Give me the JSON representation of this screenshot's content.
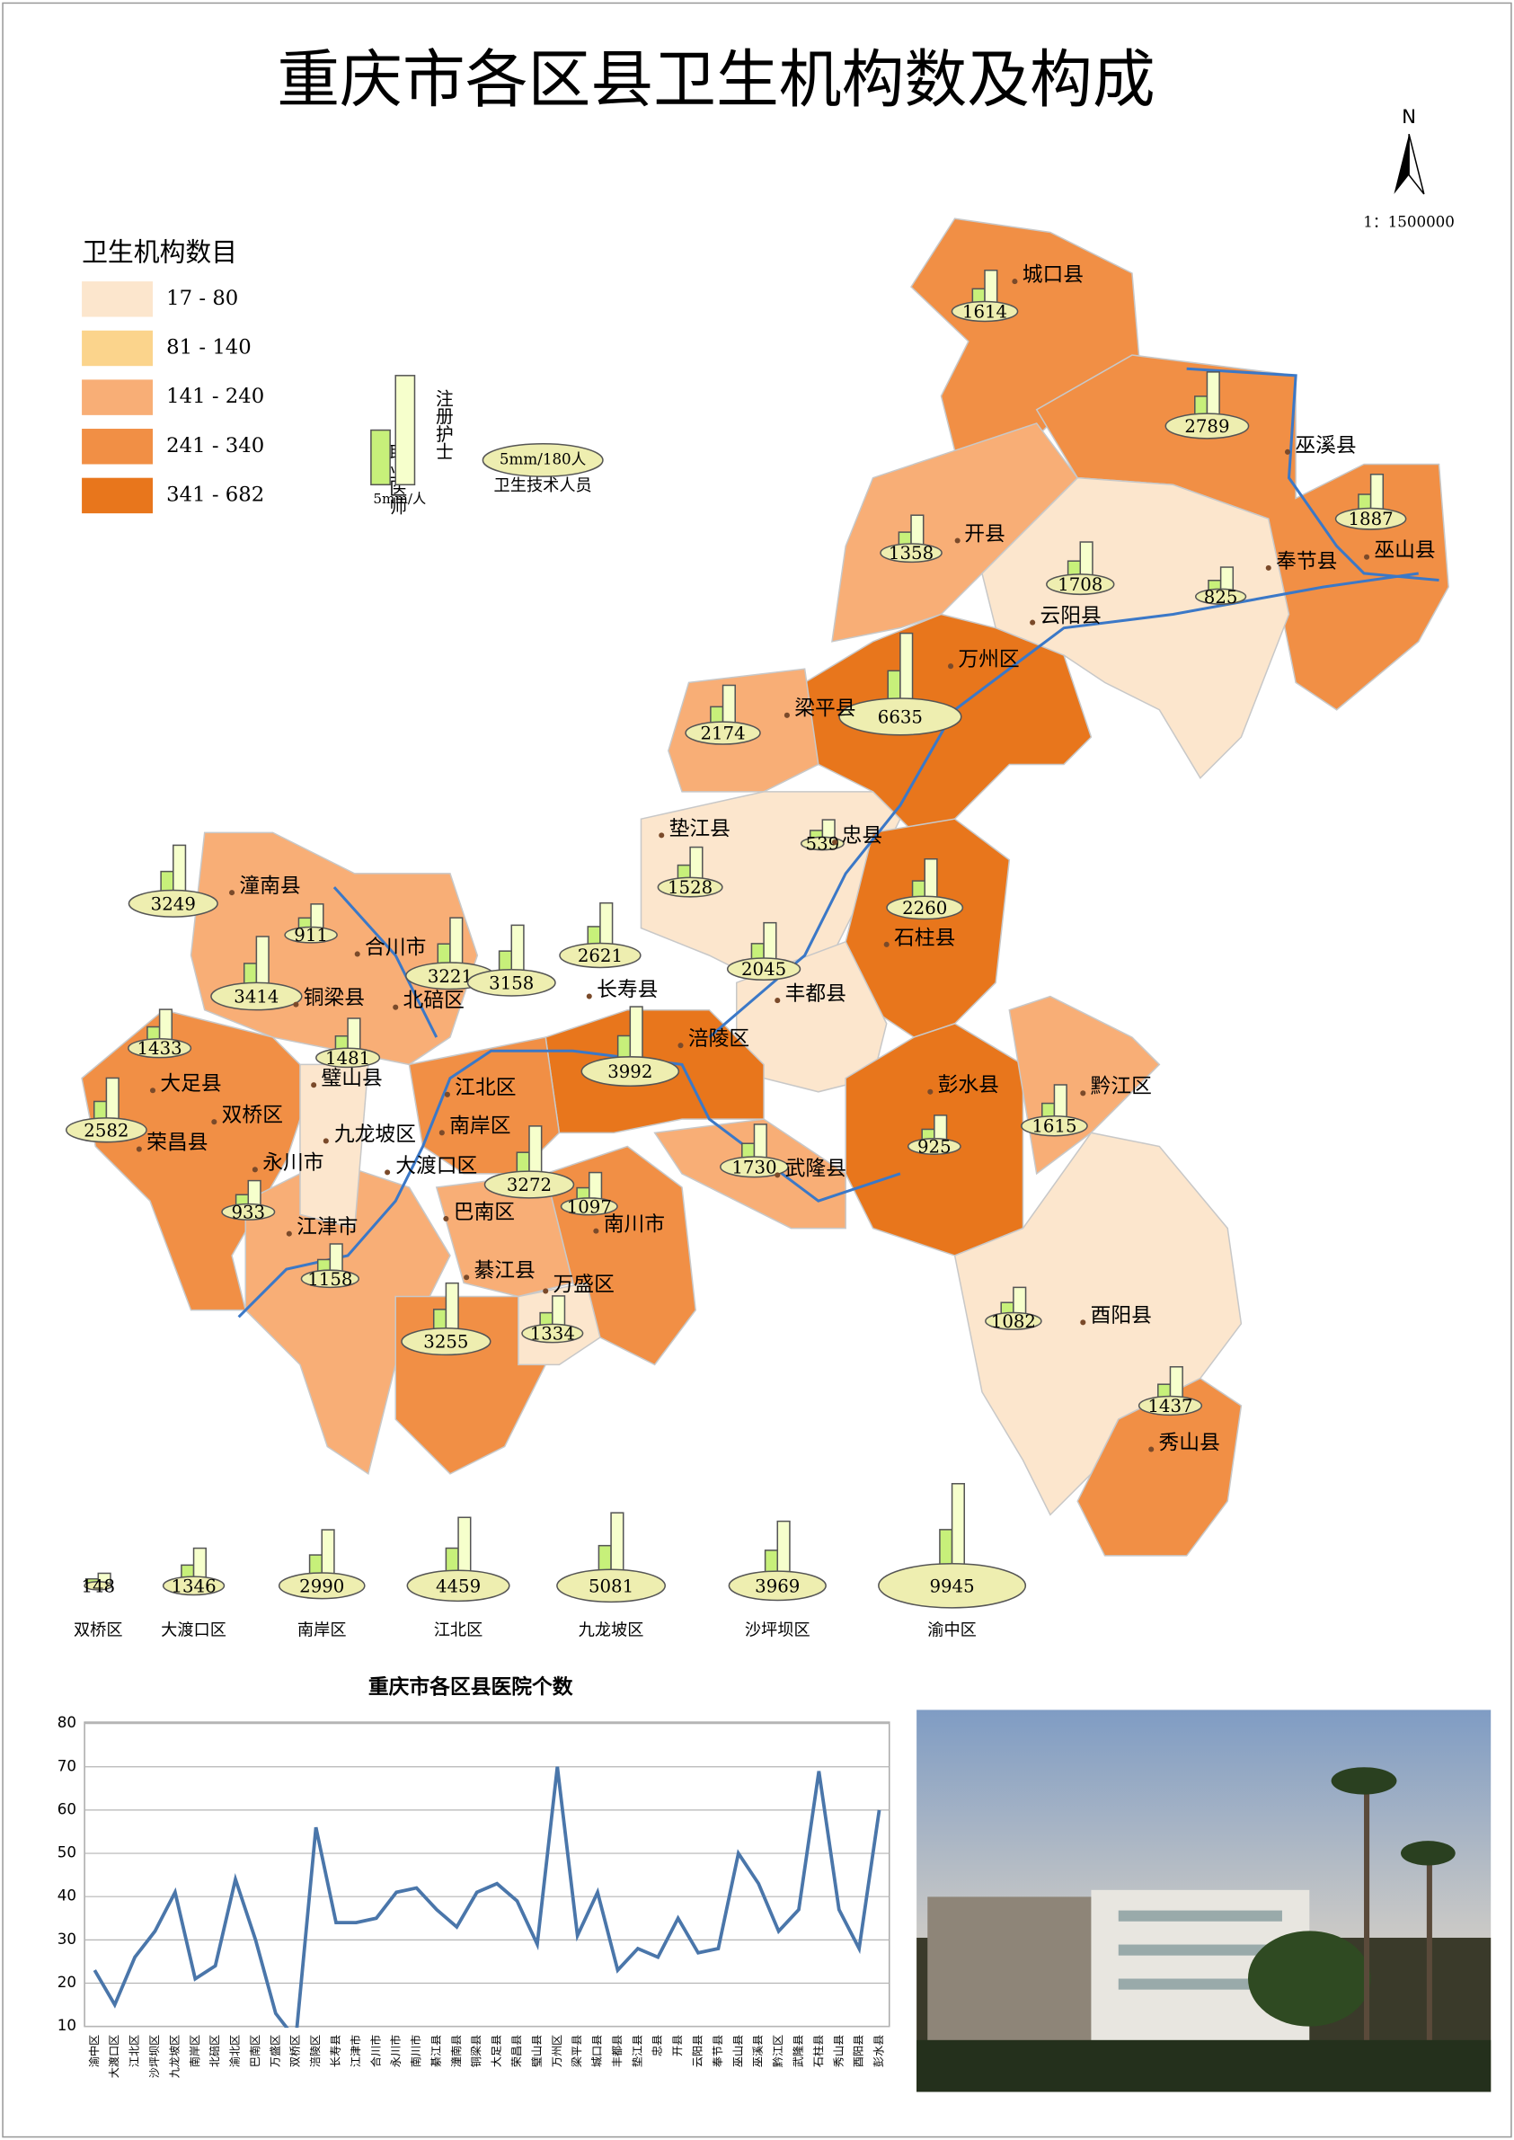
{
  "title": "重庆市各区县卫生机构数及构成",
  "compass": "N",
  "scale": "1：1500000",
  "legend": {
    "title": "卫生机构数目",
    "classes": [
      {
        "label": "17 - 80",
        "color": "#fce6cd"
      },
      {
        "label": "81 - 140",
        "color": "#fbd48c"
      },
      {
        "label": "141 - 240",
        "color": "#f8ae76"
      },
      {
        "label": "241 - 340",
        "color": "#f18f45"
      },
      {
        "label": "341 - 682",
        "color": "#e8761c"
      }
    ],
    "symbol": {
      "doctors": "职业医师",
      "nurses": "注册护士",
      "bar_scale": "5mm/人",
      "base_scale": "5mm/180人",
      "base_label": "卫生技术人员"
    }
  },
  "map": {
    "districts": [
      {
        "name": "城口县",
        "value": 1614
      },
      {
        "name": "巫溪县",
        "value": 2789
      },
      {
        "name": "巫山县",
        "value": 1887
      },
      {
        "name": "开县",
        "value": 1358
      },
      {
        "name": "云阳县",
        "value": 1708
      },
      {
        "name": "奉节县",
        "value": 825
      },
      {
        "name": "万州区",
        "value": 6635
      },
      {
        "name": "梁平县",
        "value": 2174
      },
      {
        "name": "忠县",
        "value": 539
      },
      {
        "name": "垫江县",
        "value": 1528
      },
      {
        "name": "石柱县",
        "value": 2260
      },
      {
        "name": "潼南县",
        "value": 3249
      },
      {
        "name": null,
        "value": 911
      },
      {
        "name": "合川市",
        "value": 3221
      },
      {
        "name": "北碚区",
        "value": 3158
      },
      {
        "name": "铜梁县",
        "value": 3414
      },
      {
        "name": "长寿县",
        "value": 2621
      },
      {
        "name": "丰都县",
        "value": 2045
      },
      {
        "name": "涪陵区",
        "value": 3992
      },
      {
        "name": "大足县",
        "value": 1433
      },
      {
        "name": "璧山县",
        "value": 1481
      },
      {
        "name": "荣昌县",
        "value": 2582
      },
      {
        "name": "双桥区",
        "value": null
      },
      {
        "name": "永川市",
        "value": 933
      },
      {
        "name": "江北区",
        "value": null
      },
      {
        "name": "南岸区",
        "value": null
      },
      {
        "name": "九龙坡区",
        "value": null
      },
      {
        "name": "大渡口区",
        "value": null
      },
      {
        "name": "巴南区",
        "value": 3272
      },
      {
        "name": "南川市",
        "value": 1097
      },
      {
        "name": "武隆县",
        "value": 1730
      },
      {
        "name": "彭水县",
        "value": 925
      },
      {
        "name": "黔江区",
        "value": 1615
      },
      {
        "name": "江津市",
        "value": 1158
      },
      {
        "name": "綦江县",
        "value": 3255
      },
      {
        "name": "万盛区",
        "value": 1334
      },
      {
        "name": "酉阳县",
        "value": 1082
      },
      {
        "name": "秀山县",
        "value": 1437
      }
    ]
  },
  "urban": {
    "categories": [
      "双桥区",
      "大渡口区",
      "南岸区",
      "江北区",
      "九龙坡区",
      "沙坪坝区",
      "渝中区"
    ],
    "values": [
      148,
      1346,
      2990,
      4459,
      5081,
      3969,
      9945
    ]
  },
  "chart_data": {
    "type": "line",
    "title": "重庆市各区县医院个数",
    "categories": [
      "渝中区",
      "大渡口区",
      "江北区",
      "沙坪坝区",
      "九龙坡区",
      "南岸区",
      "北碚区",
      "渝北区",
      "巴南区",
      "万盛区",
      "双桥区",
      "涪陵区",
      "长寿县",
      "江津市",
      "合川市",
      "永川市",
      "南川市",
      "綦江县",
      "潼南县",
      "铜梁县",
      "大足县",
      "荣昌县",
      "璧山县",
      "万州区",
      "梁平县",
      "城口县",
      "丰都县",
      "垫江县",
      "忠县",
      "开县",
      "云阳县",
      "奉节县",
      "巫山县",
      "巫溪县",
      "黔江区",
      "武隆县",
      "石柱县",
      "秀山县",
      "酉阳县",
      "彭水县"
    ],
    "series": [
      {
        "name": "医院个数",
        "color": "#4a76aa",
        "values": [
          23,
          15,
          26,
          32,
          41,
          21,
          24,
          44,
          30,
          13,
          7,
          56,
          34,
          34,
          35,
          41,
          42,
          37,
          33,
          41,
          43,
          39,
          29,
          70,
          31,
          41,
          23,
          28,
          26,
          35,
          27,
          28,
          50,
          43,
          32,
          37,
          69,
          37,
          28,
          60
        ]
      }
    ],
    "ylim": [
      10,
      80
    ],
    "yticks": [
      10,
      20,
      30,
      40,
      50,
      60,
      70,
      80
    ],
    "grid": true
  }
}
